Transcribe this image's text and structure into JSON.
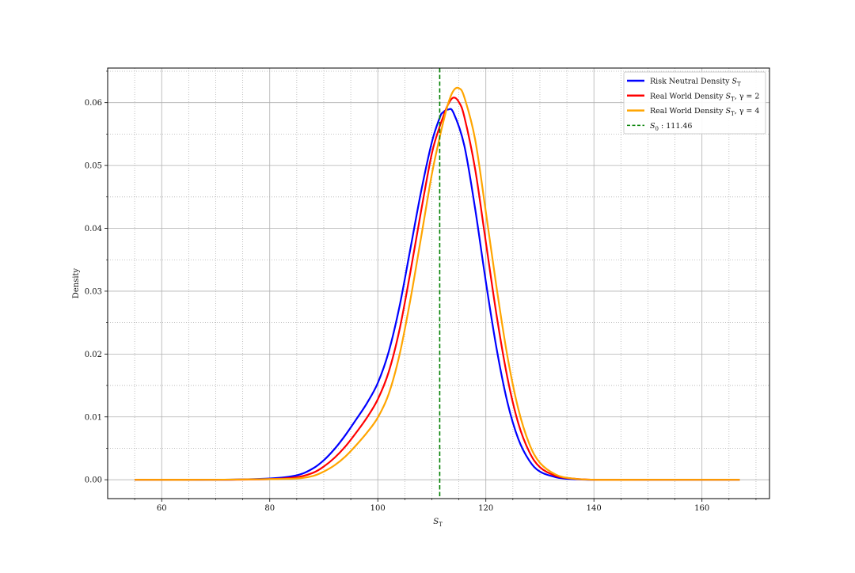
{
  "chart_data": {
    "type": "line",
    "title": "",
    "xlabel": "S_T",
    "ylabel": "Density",
    "xlim": [
      50,
      172.5
    ],
    "ylim": [
      -0.003,
      0.0655
    ],
    "xticks": [
      60,
      80,
      100,
      120,
      140,
      160
    ],
    "yticks": [
      0.0,
      0.01,
      0.02,
      0.03,
      0.04,
      0.05,
      0.06
    ],
    "ytick_labels": [
      "0.00",
      "0.01",
      "0.02",
      "0.03",
      "0.04",
      "0.05",
      "0.06"
    ],
    "grid": "major and minor (dotted minor)",
    "legend_position": "top-right",
    "series": [
      {
        "name": "Risk Neutral Density S_T",
        "color": "#0000ff",
        "x": [
          55,
          70,
          80,
          85,
          88,
          90,
          92,
          94,
          96,
          98,
          100,
          102,
          104,
          106,
          108,
          110,
          111.46,
          112,
          113,
          114,
          116,
          118,
          120,
          122,
          124,
          126,
          128,
          130,
          133,
          136,
          140,
          150,
          167
        ],
        "y": [
          0.0,
          0.0,
          0.0002,
          0.0007,
          0.0018,
          0.0031,
          0.0049,
          0.0071,
          0.0096,
          0.0122,
          0.0154,
          0.0203,
          0.0275,
          0.0366,
          0.0458,
          0.0537,
          0.0576,
          0.0584,
          0.0589,
          0.0584,
          0.0532,
          0.0432,
          0.0315,
          0.0208,
          0.0123,
          0.0065,
          0.0031,
          0.0013,
          0.0004,
          0.0001,
          0.0,
          0.0,
          0.0
        ]
      },
      {
        "name": "Real World Density S_T, γ = 2",
        "color": "#ff0000",
        "x": [
          55,
          70,
          80,
          85,
          88,
          90,
          92,
          94,
          96,
          98,
          100,
          102,
          104,
          106,
          108,
          110,
          111.46,
          112,
          113,
          114,
          115,
          116,
          118,
          120,
          122,
          124,
          126,
          128,
          130,
          133,
          136,
          140,
          150,
          167
        ],
        "y": [
          0.0,
          0.0,
          0.0001,
          0.0004,
          0.0011,
          0.0021,
          0.0035,
          0.0053,
          0.0075,
          0.0099,
          0.0128,
          0.0171,
          0.0238,
          0.0329,
          0.0427,
          0.0519,
          0.0562,
          0.0575,
          0.0597,
          0.0608,
          0.0601,
          0.0578,
          0.0495,
          0.0378,
          0.0261,
          0.0162,
          0.009,
          0.0045,
          0.002,
          0.0006,
          0.0002,
          0.0,
          0.0,
          0.0
        ]
      },
      {
        "name": "Real World Density S_T, γ = 4",
        "color": "#ffa500",
        "x": [
          55,
          70,
          80,
          85,
          88,
          90,
          92,
          94,
          96,
          98,
          100,
          102,
          104,
          106,
          108,
          110,
          111.46,
          112,
          113,
          114,
          115,
          116,
          118,
          120,
          122,
          124,
          126,
          128,
          130,
          133,
          136,
          140,
          150,
          167
        ],
        "y": [
          0.0,
          0.0,
          0.0001,
          0.0002,
          0.0006,
          0.0013,
          0.0023,
          0.0037,
          0.0055,
          0.0075,
          0.0099,
          0.0136,
          0.0198,
          0.0285,
          0.0385,
          0.0486,
          0.0545,
          0.0565,
          0.0598,
          0.0619,
          0.0623,
          0.0609,
          0.0542,
          0.0426,
          0.0305,
          0.0196,
          0.0113,
          0.0058,
          0.0027,
          0.0008,
          0.0002,
          0.0,
          0.0,
          0.0
        ]
      }
    ],
    "vline": {
      "name": "S_0 : 111.46",
      "x": 111.46,
      "color": "#008000",
      "style": "dashed"
    }
  }
}
